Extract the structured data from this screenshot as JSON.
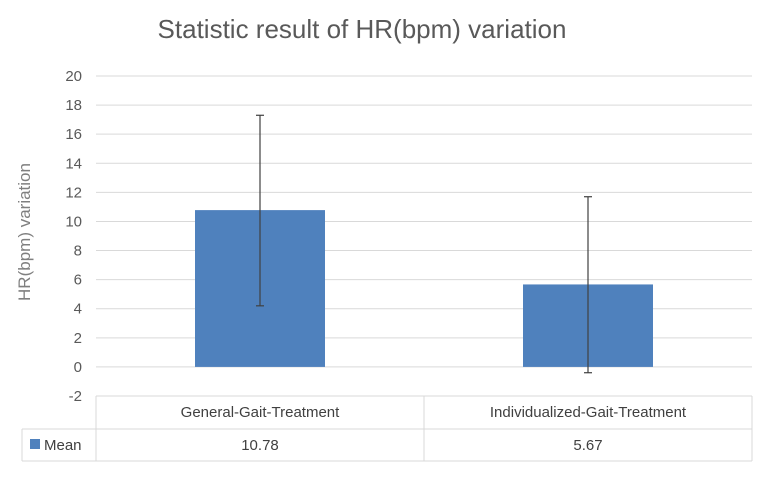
{
  "chart_data": {
    "type": "bar",
    "title": "Statistic result of HR(bpm) variation",
    "ylabel": "HR(bpm) variation",
    "xlabel": "",
    "ylim": [
      -2,
      20
    ],
    "ytick_step": 2,
    "yticks": [
      "20",
      "18",
      "16",
      "14",
      "12",
      "10",
      "8",
      "6",
      "4",
      "2",
      "0",
      "-2"
    ],
    "grid": true,
    "legend": "data-table",
    "categories": [
      "General-Gait-Treatment",
      "Individualized-Gait-Treatment"
    ],
    "series": [
      {
        "name": "Mean",
        "values": [
          10.78,
          5.67
        ],
        "value_labels": [
          "10.78",
          "5.67"
        ],
        "error_low": [
          4.2,
          -0.4
        ],
        "error_high": [
          17.3,
          11.7
        ],
        "color": "#4f81bd"
      }
    ]
  }
}
